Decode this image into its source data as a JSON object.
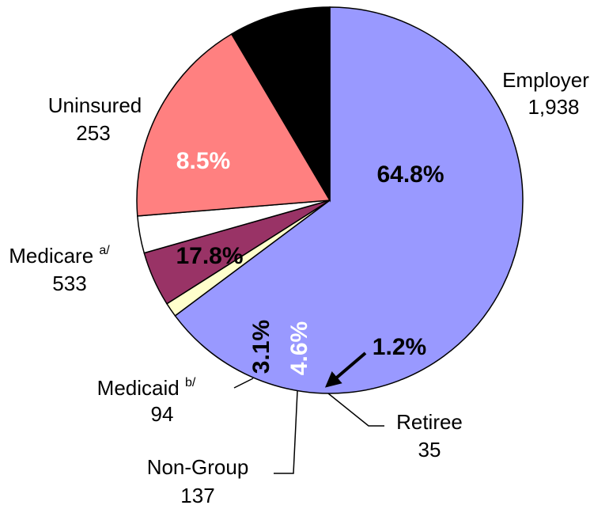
{
  "chart_data": {
    "type": "pie",
    "categories": [
      "Employer",
      "Retiree",
      "Non-Group",
      "Medicaid",
      "Medicare",
      "Uninsured"
    ],
    "superscripts": [
      null,
      null,
      null,
      "b/",
      "a/",
      null
    ],
    "values": [
      64.8,
      1.2,
      4.6,
      3.1,
      17.8,
      8.5
    ],
    "value_labels": [
      "64.8%",
      "1.2%",
      "4.6%",
      "3.1%",
      "17.8%",
      "8.5%"
    ],
    "counts": [
      {
        "value": 1938,
        "label": "1,938"
      },
      35,
      137,
      94,
      533,
      253
    ],
    "colors": [
      "#9999ff",
      "#ffffcc",
      "#993366",
      "#ffffff",
      "#ff8080",
      "#000000"
    ]
  }
}
